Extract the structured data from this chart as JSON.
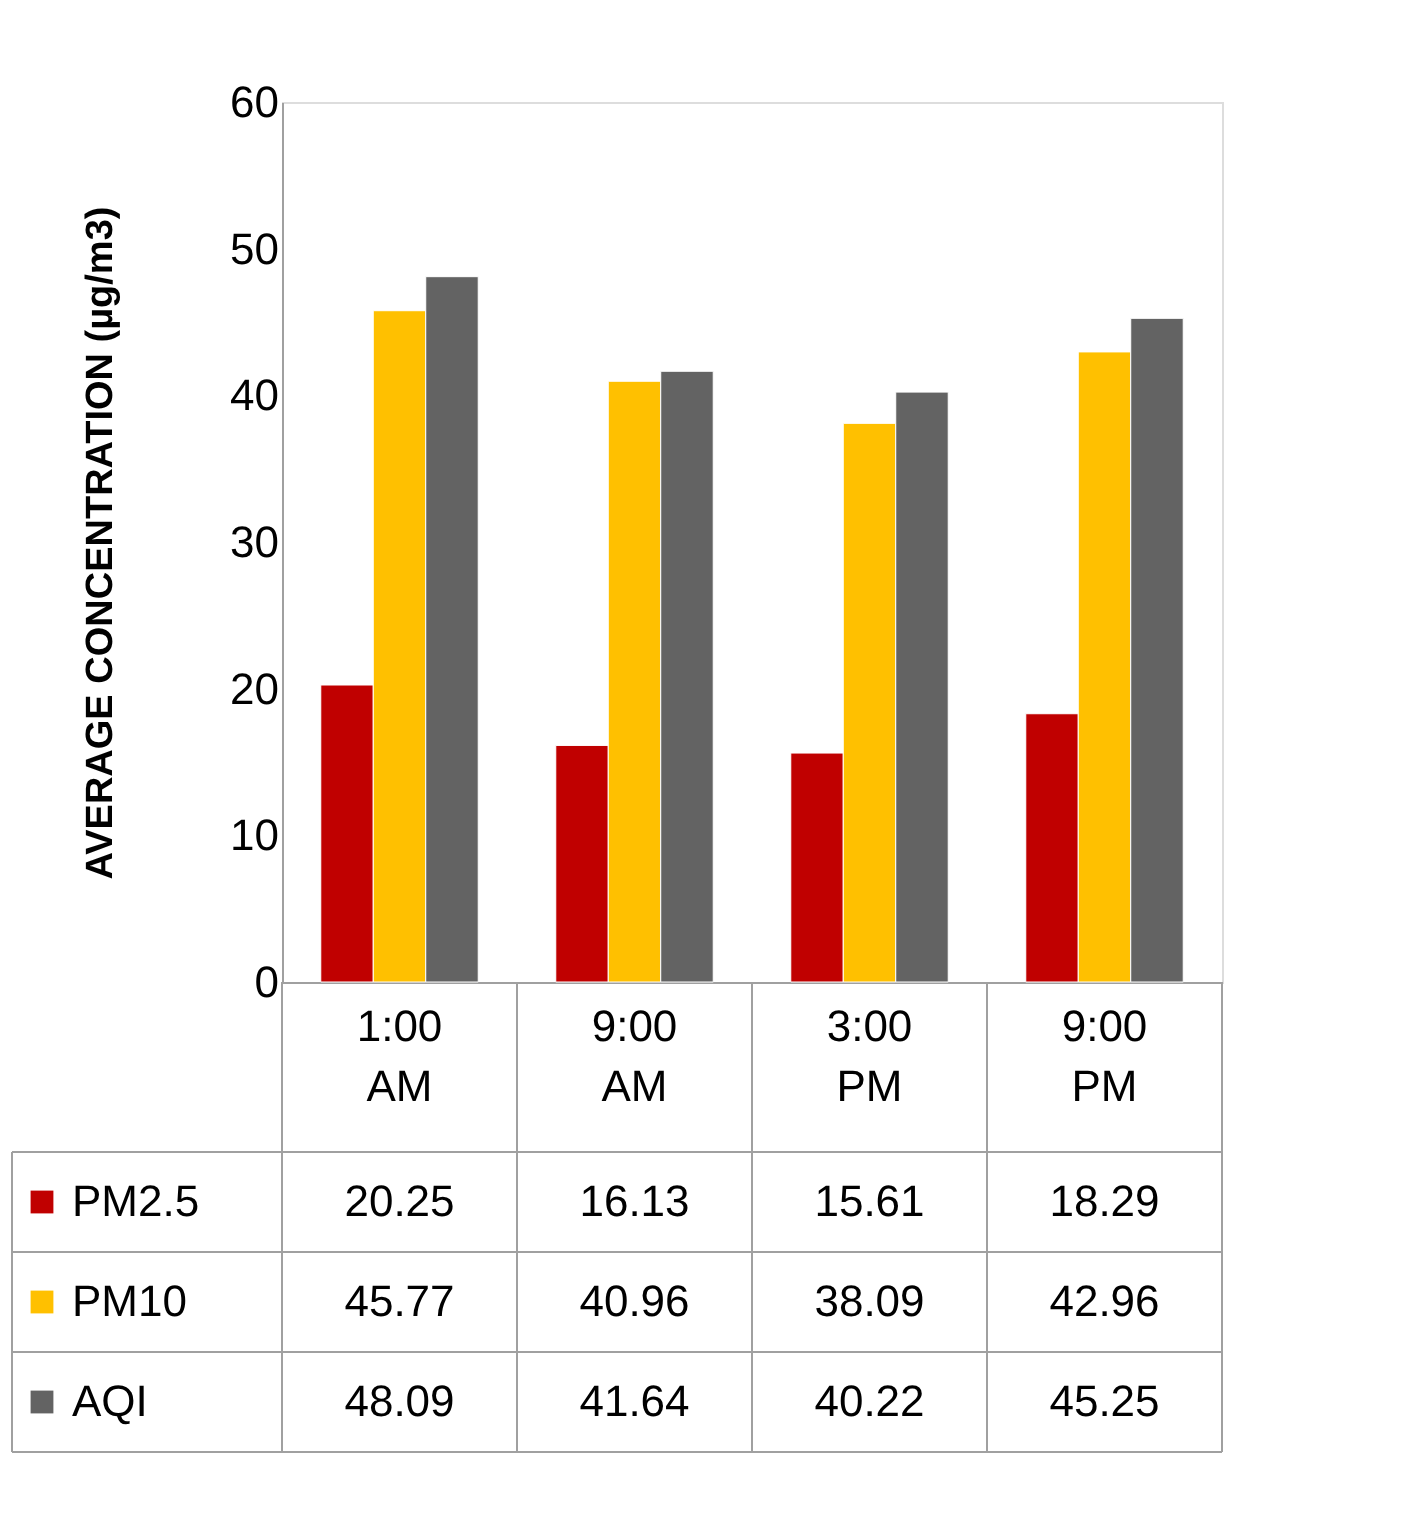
{
  "chart_data": {
    "type": "bar",
    "ylabel": "AVERAGE CONCENTRATION (µg/m3)",
    "categories": [
      "1:00 AM",
      "9:00 AM",
      "3:00 PM",
      "9:00 PM"
    ],
    "series": [
      {
        "name": "PM2.5",
        "color": "#c00000",
        "values": [
          20.25,
          16.13,
          15.61,
          18.29
        ]
      },
      {
        "name": "PM10",
        "color": "#ffc000",
        "values": [
          45.77,
          40.96,
          38.09,
          42.96
        ]
      },
      {
        "name": "AQI",
        "color": "#636363",
        "values": [
          48.09,
          41.64,
          40.22,
          45.25
        ]
      }
    ],
    "ylim": [
      0,
      60
    ],
    "yticks": [
      0,
      10,
      20,
      30,
      40,
      50,
      60
    ],
    "grid": false,
    "data_labels": true,
    "legend": "bottom"
  }
}
